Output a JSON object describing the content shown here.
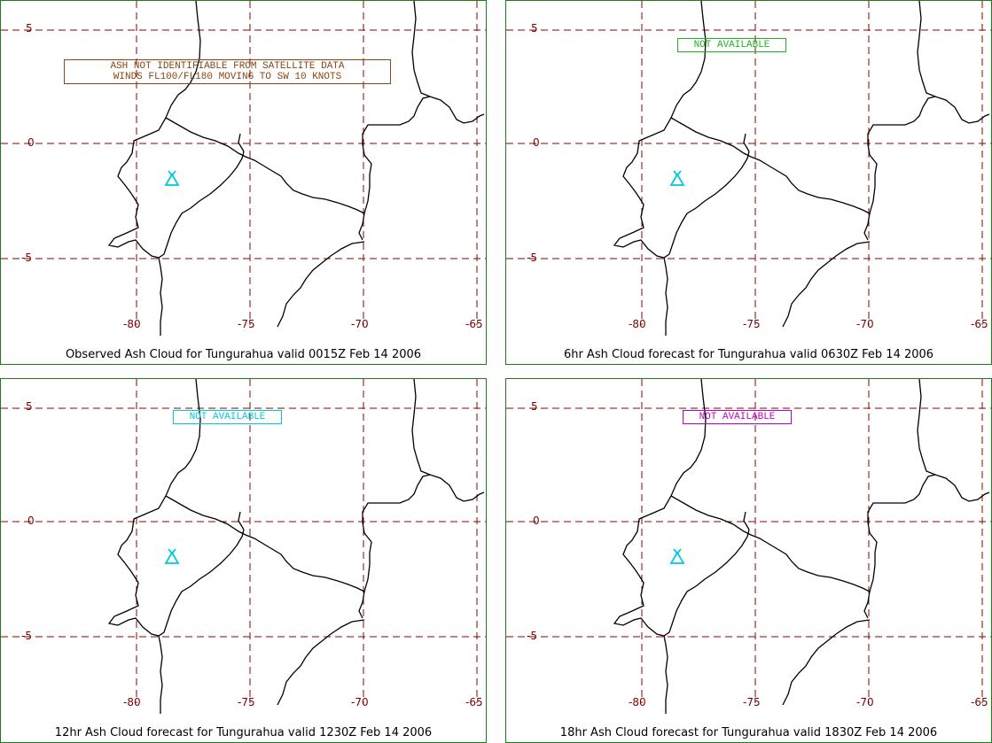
{
  "volcano": "Tungurahua",
  "axes": {
    "lat_ticks": [
      "5",
      "0",
      "-5"
    ],
    "lon_ticks": [
      "-80",
      "-75",
      "-70",
      "-65"
    ]
  },
  "colors": {
    "frame": "#1d7a1d",
    "grid": "#8b0000",
    "tick_label": "#7a0000",
    "coastline": "#000000",
    "volcano_symbol": "#00c8e0"
  },
  "icons": {
    "volcano": "volcano-triangle-icon"
  },
  "panels": [
    {
      "caption": "Observed Ash Cloud for Tungurahua valid 0015Z Feb 14 2006",
      "note_lines": [
        "ASH NOT IDENTIFIABLE FROM SATELLITE DATA",
        "WINDS FL100/FL180 MOVING TO SW 10 KNOTS"
      ],
      "note_color": "#8b4513"
    },
    {
      "caption": "6hr Ash Cloud forecast for Tungurahua valid 0630Z Feb 14 2006",
      "note_lines": [
        "NOT AVAILABLE"
      ],
      "note_color": "#22b022"
    },
    {
      "caption": "12hr Ash Cloud forecast for Tungurahua valid 1230Z Feb 14 2006",
      "note_lines": [
        "NOT AVAILABLE"
      ],
      "note_color": "#00c8e0"
    },
    {
      "caption": "18hr Ash Cloud forecast for Tungurahua valid 1830Z Feb 14 2006",
      "note_lines": [
        "NOT AVAILABLE"
      ],
      "note_color": "#c000c0"
    }
  ]
}
